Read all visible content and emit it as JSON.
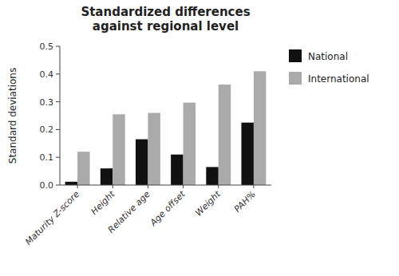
{
  "chart_data": {
    "type": "bar",
    "title": "Standardized differences\nagainst regional level",
    "ylabel": "Standard deviations",
    "categories": [
      "Maturity Z-score",
      "Height",
      "Relative age",
      "Age offset",
      "Weight",
      "PAH%"
    ],
    "series": [
      {
        "name": "National",
        "color": "#111111",
        "values": [
          0.012,
          0.06,
          0.165,
          0.11,
          0.065,
          0.225
        ]
      },
      {
        "name": "International",
        "color": "#aaaaaa",
        "values": [
          0.12,
          0.255,
          0.26,
          0.297,
          0.362,
          0.41
        ]
      }
    ],
    "ylim": [
      0,
      0.5
    ],
    "yticks": [
      {
        "value": 0,
        "label": "0.0"
      },
      0.1,
      0.2,
      0.3,
      0.4,
      0.5
    ],
    "grid": false,
    "legend": "right"
  }
}
